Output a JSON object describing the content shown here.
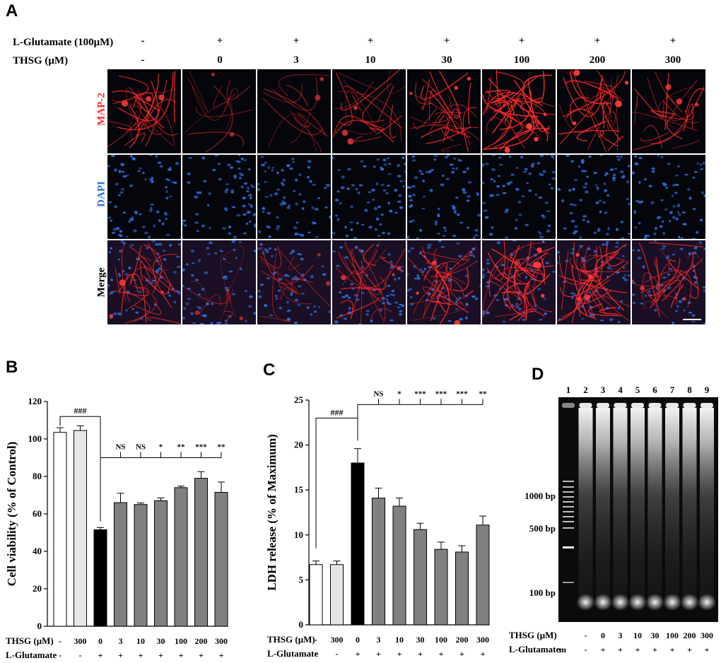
{
  "panelA": {
    "letter": "A",
    "glutamate_label": "L-Glutamate (100μM)",
    "thsg_label": "THSG (μM)",
    "glutamate_values": [
      "-",
      "+",
      "+",
      "+",
      "+",
      "+",
      "+",
      "+"
    ],
    "thsg_values": [
      "-",
      "0",
      "3",
      "10",
      "30",
      "100",
      "200",
      "300"
    ],
    "row_labels": [
      "MAP-2",
      "DAPI",
      "Merge"
    ],
    "colors": {
      "map2": "#ff2a2a",
      "dapi": "#2f6fe0",
      "merge": "#000000"
    }
  },
  "panelB": {
    "letter": "B",
    "chart_data": {
      "type": "bar",
      "ylabel": "Cell viability (% of Control)",
      "ylim": [
        0,
        120
      ],
      "yticks": [
        "0",
        "20",
        "40",
        "60",
        "80",
        "100",
        "120"
      ],
      "row1_label": "THSG (μM)",
      "row2_label": "L-Glutamate",
      "thsg": [
        "-",
        "300",
        "0",
        "3",
        "10",
        "30",
        "100",
        "200",
        "300"
      ],
      "glutamate": [
        "-",
        "-",
        "+",
        "+",
        "+",
        "+",
        "+",
        "+",
        "+"
      ],
      "values": [
        103.5,
        104.5,
        51.5,
        66,
        65,
        67,
        74,
        79,
        71.5
      ],
      "errors": [
        2.5,
        2.5,
        1.2,
        5,
        0.8,
        1.5,
        0.8,
        3.5,
        5.5
      ],
      "fills": [
        "#ffffff",
        "#e6e6e6",
        "#000000",
        "#808080",
        "#808080",
        "#808080",
        "#808080",
        "#808080",
        "#808080"
      ],
      "compare_label": "###",
      "sig": [
        "NS",
        "NS",
        "*",
        "**",
        "***",
        "**"
      ]
    }
  },
  "panelC": {
    "letter": "C",
    "chart_data": {
      "type": "bar",
      "ylabel": "LDH release (% of Maximum)",
      "ylim": [
        0,
        25
      ],
      "yticks": [
        "0",
        "5",
        "10",
        "15",
        "20",
        "25"
      ],
      "row1_label": "THSG (μM)",
      "row2_label": "L-Glutamate",
      "thsg": [
        "-",
        "300",
        "0",
        "3",
        "10",
        "30",
        "100",
        "200",
        "300"
      ],
      "glutamate": [
        "-",
        "-",
        "+",
        "+",
        "+",
        "+",
        "+",
        "+",
        "+"
      ],
      "values": [
        6.7,
        6.7,
        18.0,
        14.1,
        13.2,
        10.6,
        8.4,
        8.1,
        11.1
      ],
      "errors": [
        0.4,
        0.4,
        1.6,
        1.1,
        0.9,
        0.7,
        0.8,
        0.7,
        1.0
      ],
      "fills": [
        "#ffffff",
        "#e6e6e6",
        "#000000",
        "#808080",
        "#808080",
        "#808080",
        "#808080",
        "#808080",
        "#808080"
      ],
      "compare_label": "###",
      "sig": [
        "NS",
        "*",
        "***",
        "***",
        "***",
        "**"
      ]
    }
  },
  "panelD": {
    "letter": "D",
    "lanes": [
      "1",
      "2",
      "3",
      "4",
      "5",
      "6",
      "7",
      "8",
      "9"
    ],
    "markers": [
      "1000 bp",
      "500 bp",
      "100 bp"
    ],
    "thsg_label": "THSG (μM)",
    "thsg": [
      "-",
      "0",
      "3",
      "10",
      "30",
      "100",
      "200",
      "300"
    ],
    "glutamate_label": "L-Glutamate",
    "glutamate": [
      "m",
      "-",
      "+",
      "+",
      "+",
      "+",
      "+",
      "+",
      "+"
    ]
  }
}
